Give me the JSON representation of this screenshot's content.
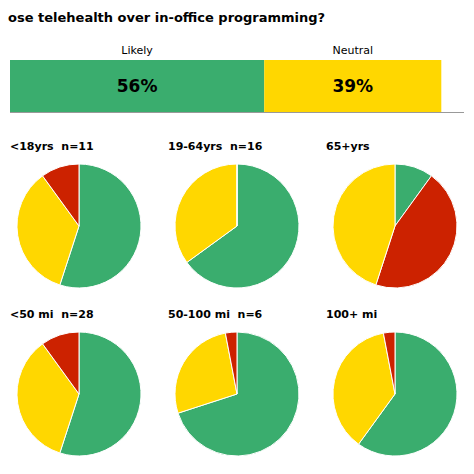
{
  "chart_data": [
    {
      "type": "bar",
      "orientation": "horizontal",
      "stacked": true,
      "title": "ose telehealth over in-office programming?",
      "categories": [
        null
      ],
      "series": [
        {
          "name": "Likely",
          "color": "#3aad6e",
          "values": [
            56
          ],
          "value_labels": [
            "56%"
          ]
        },
        {
          "name": "Neutral",
          "color": "#ffd700",
          "values": [
            39
          ],
          "value_labels": [
            "39%"
          ]
        }
      ],
      "xlim": [
        0,
        100
      ],
      "data_labels": true,
      "tick_labels": false
    },
    {
      "type": "pie",
      "title": "<18yrs  n=11",
      "values": [
        55,
        35,
        10
      ],
      "colors": [
        "#3aad6e",
        "#ffd700",
        "#cc2200"
      ]
    },
    {
      "type": "pie",
      "title": "19-64yrs  n=16",
      "values": [
        65,
        35,
        0
      ],
      "colors": [
        "#3aad6e",
        "#ffd700",
        "#cc2200"
      ]
    },
    {
      "type": "pie",
      "title": "65+yrs",
      "values": [
        10,
        45,
        45
      ],
      "colors": [
        "#3aad6e",
        "#cc2200",
        "#ffd700"
      ]
    },
    {
      "type": "pie",
      "title": "<50 mi  n=28",
      "values": [
        55,
        35,
        10
      ],
      "colors": [
        "#3aad6e",
        "#ffd700",
        "#cc2200"
      ]
    },
    {
      "type": "pie",
      "title": "50-100 mi  n=6",
      "values": [
        70,
        27,
        3
      ],
      "colors": [
        "#3aad6e",
        "#ffd700",
        "#cc2200"
      ]
    },
    {
      "type": "pie",
      "title": "100+ mi",
      "values": [
        60,
        37,
        3
      ],
      "colors": [
        "#3aad6e",
        "#ffd700",
        "#cc2200"
      ]
    }
  ]
}
